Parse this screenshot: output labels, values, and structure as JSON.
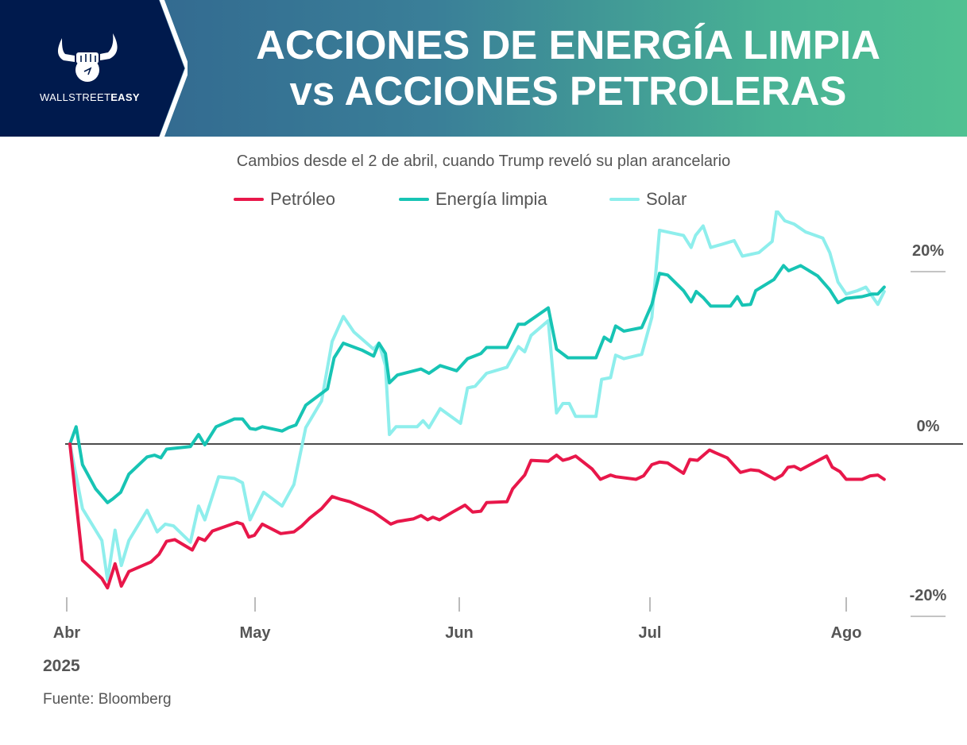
{
  "header": {
    "logo_text_light": "WALLSTREET",
    "logo_text_bold": "EASY",
    "title_line1": "ACCIONES DE ENERGÍA LIMPIA",
    "title_line2": "vs ACCIONES PETROLERAS"
  },
  "subtitle": "Cambios desde el 2 de abril, cuando Trump reveló su plan arancelario",
  "year": "2025",
  "source": "Fuente: Bloomberg",
  "chart_data": {
    "type": "line",
    "title": "ACCIONES DE ENERGÍA LIMPIA vs ACCIONES PETROLERAS",
    "subtitle": "Cambios desde el 2 de abril, cuando Trump reveló su plan arancelario",
    "xlabel": "",
    "ylabel": "",
    "x_unit": "days since 1 Apr 2025",
    "xlim": [
      0,
      130
    ],
    "ylim": [
      -20,
      27
    ],
    "x_ticks": [
      {
        "label": "Abr",
        "value": 0
      },
      {
        "label": "May",
        "value": 30
      },
      {
        "label": "Jun",
        "value": 61
      },
      {
        "label": "Jul",
        "value": 91
      },
      {
        "label": "Ago",
        "value": 122
      }
    ],
    "y_ticks": [
      {
        "label": "20%",
        "value": 20
      },
      {
        "label": "0%",
        "value": 0
      },
      {
        "label": "-20%",
        "value": -20
      }
    ],
    "legend_position": "top-center",
    "grid": false,
    "series": [
      {
        "name": "Petróleo",
        "color": "#e8174a",
        "x": [
          0.5,
          2.5,
          5.6,
          6.5,
          7.7,
          8.7,
          9.9,
          13.4,
          14.7,
          15.9,
          17.2,
          20,
          21,
          22,
          23.2,
          27.1,
          28,
          29,
          29.9,
          31.1,
          33.9,
          35.9,
          37.1,
          38.3,
          40.1,
          41.7,
          42.9,
          44.4,
          48,
          50.6,
          51.6,
          54,
          55.2,
          56.2,
          57,
          58,
          60,
          61.9,
          63.1,
          64.4,
          65.3,
          68.5,
          69.4,
          71.3,
          72.3,
          75,
          76.3,
          77.3,
          78.3,
          79.3,
          81.9,
          83.2,
          84.8,
          85.6,
          88.8,
          90,
          91.3,
          92.5,
          93.8,
          96.3,
          97.3,
          98.5,
          100.4,
          101.3,
          103.2,
          105.3,
          106.9,
          108.2,
          110.7,
          111.9,
          112.8,
          113.8,
          114.8,
          117.6,
          118.9,
          119.8,
          121,
          122,
          124.5,
          125.8,
          127,
          128
        ],
        "y": [
          0,
          -13.5,
          -15.6,
          -16.7,
          -13.9,
          -16.5,
          -14.8,
          -13.7,
          -12.8,
          -11.3,
          -11.1,
          -12.3,
          -10.9,
          -11.2,
          -10.1,
          -9.1,
          -9.3,
          -10.8,
          -10.6,
          -9.3,
          -10.4,
          -10.2,
          -9.5,
          -8.6,
          -7.5,
          -6.1,
          -6.4,
          -6.7,
          -7.9,
          -9.3,
          -9.0,
          -8.7,
          -8.3,
          -8.8,
          -8.5,
          -8.8,
          -7.9,
          -7.1,
          -7.9,
          -7.8,
          -6.8,
          -6.7,
          -5.2,
          -3.6,
          -1.9,
          -2.0,
          -1.3,
          -1.9,
          -1.7,
          -1.4,
          -2.9,
          -4.1,
          -3.6,
          -3.8,
          -4.1,
          -3.7,
          -2.4,
          -2.1,
          -2.2,
          -3.4,
          -1.8,
          -1.9,
          -0.7,
          -1.0,
          -1.6,
          -3.3,
          -3.0,
          -3.1,
          -4.1,
          -3.6,
          -2.7,
          -2.6,
          -3.0,
          -1.9,
          -1.4,
          -2.7,
          -3.2,
          -4.1,
          -4.1,
          -3.7,
          -3.6,
          -4.1
        ]
      },
      {
        "name": "Energía limpia",
        "color": "#17c4b4",
        "x": [
          0.5,
          1.5,
          2.5,
          4.6,
          6.5,
          7.3,
          8.6,
          9.9,
          12.8,
          14,
          15,
          15.9,
          19.7,
          21,
          22,
          23.8,
          26.7,
          28,
          29.2,
          30.1,
          31.1,
          34.1,
          35.1,
          36.2,
          37.7,
          41,
          42,
          43.4,
          46.2,
          48,
          48.8,
          49.8,
          50.4,
          51.6,
          55.2,
          56.4,
          58.1,
          60.6,
          62.3,
          64.4,
          65.3,
          68.5,
          70.3,
          71.3,
          75,
          76.3,
          78.1,
          82.5,
          83.8,
          84.8,
          85.6,
          86.9,
          89.7,
          91.3,
          92.5,
          93.8,
          96.3,
          97.5,
          98.3,
          99.4,
          100.6,
          103.7,
          104.8,
          105.6,
          106.9,
          107.7,
          110.6,
          112.1,
          112.9,
          114.8,
          117.5,
          119.4,
          120.7,
          122,
          124.5,
          126.1,
          127,
          128
        ],
        "y": [
          0,
          2.0,
          -2.4,
          -5.2,
          -6.8,
          -6.4,
          -5.6,
          -3.5,
          -1.5,
          -1.3,
          -1.6,
          -0.6,
          -0.3,
          1.1,
          -0.1,
          2.0,
          2.9,
          2.9,
          1.8,
          1.7,
          2.0,
          1.5,
          1.9,
          2.2,
          4.5,
          6.4,
          10.0,
          11.7,
          10.9,
          10.2,
          11.7,
          10.5,
          7.1,
          8.0,
          8.7,
          8.2,
          9.1,
          8.5,
          9.9,
          10.5,
          11.2,
          11.2,
          13.9,
          13.9,
          15.8,
          11.0,
          10.0,
          10.0,
          12.4,
          11.9,
          13.7,
          13.1,
          13.5,
          16.2,
          19.8,
          19.6,
          17.8,
          16.5,
          17.7,
          17.0,
          16.0,
          16.0,
          17.1,
          16.1,
          16.2,
          17.8,
          19.1,
          20.7,
          20.1,
          20.7,
          19.5,
          17.9,
          16.4,
          16.9,
          17.1,
          17.4,
          17.4,
          18.2
        ]
      },
      {
        "name": "Solar",
        "color": "#8eeeec",
        "x": [
          0.5,
          2.5,
          5.6,
          6.5,
          7.7,
          8.7,
          9.9,
          12.8,
          14.4,
          15.7,
          17,
          19.7,
          21,
          22,
          24.2,
          26.7,
          28,
          29.2,
          31.3,
          34.1,
          35.9,
          37.7,
          40.1,
          41.7,
          43.4,
          45,
          48,
          48.8,
          49.8,
          50.4,
          51.4,
          54.6,
          55.5,
          56.4,
          58.1,
          61.2,
          62.3,
          63.5,
          65.3,
          68.5,
          70.3,
          71.3,
          72.3,
          75,
          76.3,
          77.3,
          78.3,
          79.3,
          82.5,
          83.4,
          84.8,
          85.6,
          86.9,
          89.7,
          91.3,
          92.5,
          96.3,
          97.5,
          98.2,
          99.4,
          100.6,
          102.5,
          104.3,
          105.6,
          108.2,
          110.3,
          111,
          112.3,
          113.8,
          115.6,
          118.3,
          119.4,
          120.7,
          122,
          123.8,
          125.1,
          127,
          128
        ],
        "y": [
          0,
          -7.5,
          -11.2,
          -15.8,
          -10.0,
          -14.1,
          -11.2,
          -7.7,
          -10.2,
          -9.3,
          -9.5,
          -11.4,
          -7.2,
          -8.8,
          -3.8,
          -4.0,
          -4.5,
          -8.8,
          -5.6,
          -7.2,
          -4.7,
          1.9,
          5.0,
          11.9,
          14.8,
          13.0,
          11.0,
          11.7,
          9.1,
          1.1,
          2.0,
          2.0,
          2.7,
          1.9,
          4.1,
          2.4,
          6.5,
          6.7,
          8.2,
          8.9,
          11.3,
          10.7,
          12.6,
          14.3,
          3.6,
          4.7,
          4.7,
          3.2,
          3.2,
          7.5,
          7.7,
          10.3,
          9.9,
          10.4,
          14.7,
          24.8,
          24.2,
          22.8,
          24.2,
          25.3,
          22.8,
          23.2,
          23.6,
          21.8,
          22.2,
          23.5,
          27.1,
          25.9,
          25.5,
          24.6,
          23.9,
          22.2,
          18.8,
          17.4,
          17.8,
          18.2,
          16.2,
          17.7
        ]
      }
    ]
  }
}
